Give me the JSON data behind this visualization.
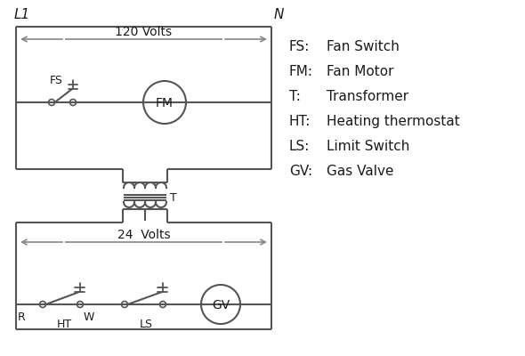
{
  "bg_color": "#ffffff",
  "line_color": "#555555",
  "text_color": "#1a1a1a",
  "legend": {
    "FS": "Fan Switch",
    "FM": "Fan Motor",
    "T": "Transformer",
    "HT": "Heating thermostat",
    "LS": "Limit Switch",
    "GV": "Gas Valve"
  },
  "L1_label": "L1",
  "N_label": "N",
  "volts120_label": "120 Volts",
  "volts24_label": "24  Volts",
  "T_label": "T",
  "R_label": "R",
  "W_label": "W",
  "HT_label": "HT",
  "LS_label": "LS",
  "FS_label": "FS",
  "FM_label": "FM",
  "GV_label": "GV"
}
